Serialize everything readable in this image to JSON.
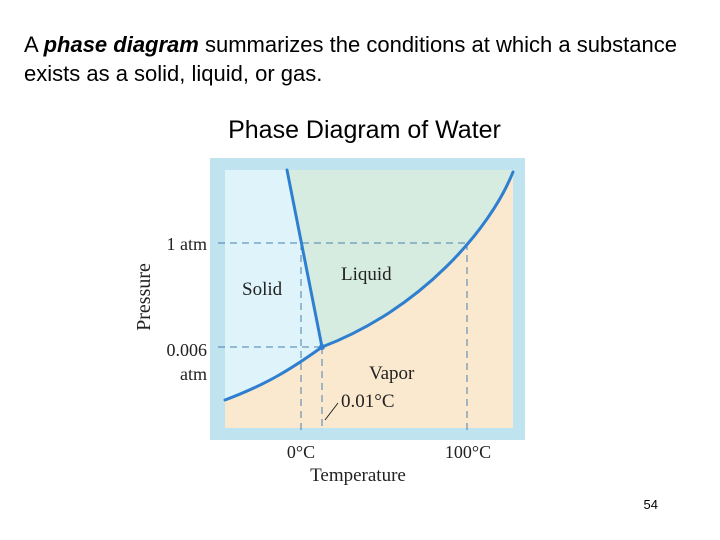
{
  "intro": {
    "prefix": "A ",
    "emphasis": "phase diagram",
    "suffix": " summarizes the conditions at which a substance exists as a solid, liquid, or gas."
  },
  "diagram": {
    "title": "Phase Diagram of Water",
    "y_axis_label": "Pressure",
    "x_axis_label": "Temperature",
    "pressure_1atm": "1 atm",
    "pressure_triple_line1": "0.006",
    "pressure_triple_line2": "atm",
    "temp_0": "0°C",
    "temp_100": "100°C",
    "triple_point_label": "0.01°C",
    "regions": {
      "solid": "Solid",
      "liquid": "Liquid",
      "vapor": "Vapor"
    },
    "colors": {
      "frame": "#bfe3ef",
      "solid": "#dff3fa",
      "liquid": "#d6ece0",
      "vapor": "#fbe9cf",
      "curve": "#2f7fd0",
      "guide": "#4a7fb0"
    }
  },
  "page_number": "54"
}
